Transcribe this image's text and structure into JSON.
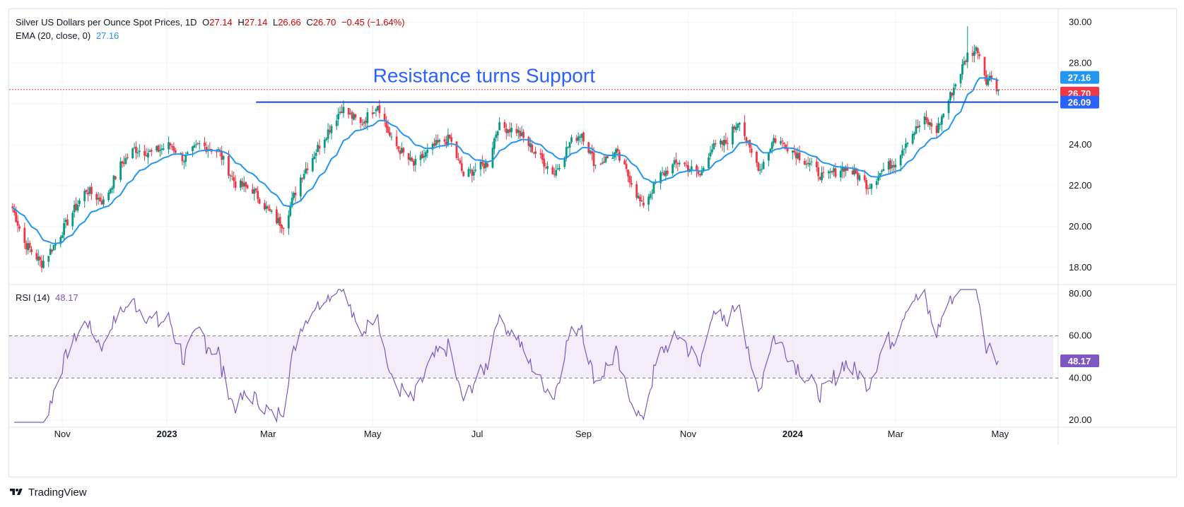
{
  "header": {
    "title": "Silver US Dollars per Ounce Spot Prices, 1D",
    "open_label": "O",
    "open": "27.14",
    "high_label": "H",
    "high": "27.14",
    "low_label": "L",
    "low": "26.66",
    "close_label": "C",
    "close": "26.70",
    "change": "−0.45 (−1.64%)",
    "ema_label": "EMA (20, close, 0)",
    "ema_value": "27.16",
    "rsi_label": "RSI (14)",
    "rsi_value": "48.17"
  },
  "footer": {
    "brand": "TradingView",
    "logo_icon": "tradingview-logo-icon"
  },
  "colors": {
    "up": "#089981",
    "down": "#f23645",
    "ema": "#2196f3",
    "rsi": "#7e57c2",
    "support_line": "#1848cc",
    "annotation": "#2962ff",
    "grid": "#f0f3fa",
    "close_badge": "#f23645",
    "ema_badge": "#2196f3",
    "support_badge": "#2962ff",
    "rsi_band": "#ede7f6"
  },
  "chart_data": [
    {
      "type": "candlestick",
      "title": "Silver US Dollars per Ounce Spot Prices, 1D",
      "x_ticks": [
        "Nov",
        "2023",
        "Mar",
        "May",
        "Jul",
        "Sep",
        "Nov",
        "2024",
        "Mar",
        "May"
      ],
      "x_tick_dates": [
        "2022-11-01",
        "2023-01-01",
        "2023-03-01",
        "2023-05-01",
        "2023-07-01",
        "2023-09-01",
        "2023-11-01",
        "2024-01-01",
        "2024-03-01",
        "2024-05-01"
      ],
      "y_ticks": [
        "18.00",
        "20.00",
        "22.00",
        "24.00",
        "26.00",
        "28.00",
        "30.00"
      ],
      "ylim": [
        17.2,
        30.6
      ],
      "grid": true,
      "series": [
        {
          "name": "Silver US Dollars per Ounce Spot Prices",
          "kind": "ohlc",
          "anchors": [
            [
              "2022-10-03",
              20.9
            ],
            [
              "2022-10-10",
              19.2
            ],
            [
              "2022-10-20",
              18.2
            ],
            [
              "2022-10-28",
              19.2
            ],
            [
              "2022-11-07",
              20.7
            ],
            [
              "2022-11-15",
              21.8
            ],
            [
              "2022-11-25",
              21.2
            ],
            [
              "2022-12-05",
              23.0
            ],
            [
              "2022-12-13",
              23.8
            ],
            [
              "2022-12-23",
              23.6
            ],
            [
              "2023-01-03",
              24.0
            ],
            [
              "2023-01-11",
              23.3
            ],
            [
              "2023-01-20",
              24.0
            ],
            [
              "2023-01-31",
              23.7
            ],
            [
              "2023-02-10",
              22.1
            ],
            [
              "2023-02-20",
              21.8
            ],
            [
              "2023-03-01",
              20.8
            ],
            [
              "2023-03-06",
              20.3
            ],
            [
              "2023-03-10",
              20.1
            ],
            [
              "2023-03-20",
              22.4
            ],
            [
              "2023-03-31",
              24.0
            ],
            [
              "2023-04-13",
              25.8
            ],
            [
              "2023-04-24",
              25.0
            ],
            [
              "2023-05-04",
              26.0
            ],
            [
              "2023-05-12",
              24.2
            ],
            [
              "2023-05-25",
              23.0
            ],
            [
              "2023-06-07",
              24.0
            ],
            [
              "2023-06-15",
              24.3
            ],
            [
              "2023-06-23",
              22.5
            ],
            [
              "2023-06-30",
              22.8
            ],
            [
              "2023-07-07",
              23.1
            ],
            [
              "2023-07-13",
              24.9
            ],
            [
              "2023-07-24",
              24.7
            ],
            [
              "2023-08-04",
              23.6
            ],
            [
              "2023-08-15",
              22.6
            ],
            [
              "2023-08-24",
              24.1
            ],
            [
              "2023-08-31",
              24.6
            ],
            [
              "2023-09-08",
              23.0
            ],
            [
              "2023-09-20",
              23.6
            ],
            [
              "2023-09-29",
              22.2
            ],
            [
              "2023-10-05",
              21.0
            ],
            [
              "2023-10-16",
              22.5
            ],
            [
              "2023-10-27",
              23.2
            ],
            [
              "2023-11-08",
              22.5
            ],
            [
              "2023-11-14",
              23.8
            ],
            [
              "2023-11-23",
              24.1
            ],
            [
              "2023-12-01",
              25.3
            ],
            [
              "2023-12-07",
              23.7
            ],
            [
              "2023-12-13",
              22.8
            ],
            [
              "2023-12-21",
              24.3
            ],
            [
              "2023-12-28",
              24.0
            ],
            [
              "2024-01-10",
              23.1
            ],
            [
              "2024-01-19",
              22.4
            ],
            [
              "2024-01-31",
              22.9
            ],
            [
              "2024-02-08",
              22.5
            ],
            [
              "2024-02-14",
              22.0
            ],
            [
              "2024-02-23",
              22.8
            ],
            [
              "2024-03-01",
              23.2
            ],
            [
              "2024-03-08",
              24.3
            ],
            [
              "2024-03-18",
              25.2
            ],
            [
              "2024-03-25",
              24.7
            ],
            [
              "2024-04-02",
              26.4
            ],
            [
              "2024-04-10",
              28.0
            ],
            [
              "2024-04-12",
              28.4
            ],
            [
              "2024-04-18",
              28.7
            ],
            [
              "2024-04-23",
              27.2
            ],
            [
              "2024-04-26",
              27.3
            ],
            [
              "2024-04-30",
              26.7
            ]
          ]
        },
        {
          "name": "EMA (20, close, 0)",
          "kind": "ema",
          "period": 20,
          "last": 27.16
        }
      ],
      "last_close": 26.7,
      "badges": [
        "27.16",
        "26.70",
        "26.09"
      ],
      "annotations": [
        {
          "text": "Resistance turns Support",
          "kind": "horizontal-line",
          "value": 26.09,
          "from": "2023-02-22",
          "to": "2024-04-30"
        }
      ]
    },
    {
      "type": "line",
      "title": "RSI (14)",
      "y_ticks": [
        "20.00",
        "40.00",
        "60.00",
        "80.00"
      ],
      "ylim": [
        17,
        84
      ],
      "band": [
        40,
        60
      ],
      "grid": true,
      "series": [
        {
          "name": "RSI (14)",
          "period": 14,
          "last": 48.17
        }
      ],
      "badges": [
        "48.17"
      ]
    }
  ]
}
